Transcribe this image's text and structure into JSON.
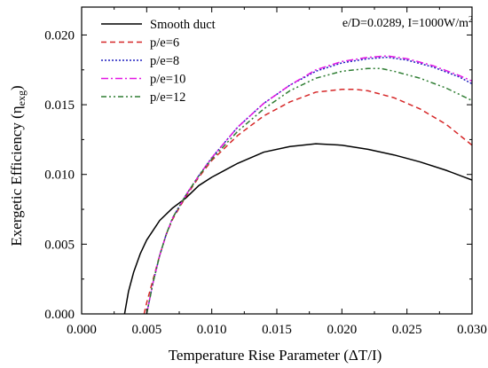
{
  "chart_data": {
    "type": "line",
    "xlabel": "Temperature Rise Parameter (ΔT/I)",
    "ylabel_main": "Exergetic Efficiency (η",
    "ylabel_sub": "exg",
    "ylabel_close": ")",
    "xlim": [
      0.0,
      0.03
    ],
    "ylim": [
      0.0,
      0.022
    ],
    "xticks": [
      "0.000",
      "0.005",
      "0.010",
      "0.015",
      "0.020",
      "0.025",
      "0.030"
    ],
    "yticks": [
      "0.000",
      "0.005",
      "0.010",
      "0.015",
      "0.020"
    ],
    "grid": false,
    "legend_position": "top-left",
    "annotation_prefix": "e/D=0.0289, I=1000W/m",
    "annotation_sup": "2",
    "series": [
      {
        "name": "Smooth duct",
        "color": "#000000",
        "dash": "",
        "x": [
          0.0033,
          0.0036,
          0.004,
          0.0045,
          0.005,
          0.006,
          0.007,
          0.008,
          0.009,
          0.01,
          0.012,
          0.014,
          0.016,
          0.018,
          0.02,
          0.022,
          0.024,
          0.026,
          0.028,
          0.03
        ],
        "y": [
          0.0,
          0.0016,
          0.003,
          0.0043,
          0.0053,
          0.0067,
          0.0076,
          0.0083,
          0.0092,
          0.0098,
          0.0108,
          0.0116,
          0.012,
          0.0122,
          0.0121,
          0.0118,
          0.0114,
          0.0109,
          0.0103,
          0.0096
        ]
      },
      {
        "name": "p/e=6",
        "color": "#d62728",
        "dash": "6,4",
        "x": [
          0.0048,
          0.005,
          0.0055,
          0.006,
          0.0065,
          0.007,
          0.008,
          0.009,
          0.01,
          0.012,
          0.014,
          0.016,
          0.018,
          0.02,
          0.021,
          0.022,
          0.024,
          0.026,
          0.028,
          0.03
        ],
        "y": [
          0.0,
          0.0008,
          0.0025,
          0.0042,
          0.0057,
          0.0068,
          0.0084,
          0.0098,
          0.011,
          0.0128,
          0.0142,
          0.0152,
          0.0159,
          0.0161,
          0.0161,
          0.016,
          0.0155,
          0.0147,
          0.0136,
          0.0121
        ]
      },
      {
        "name": "p/e=8",
        "color": "#1f1fbf",
        "dash": "2,2",
        "x": [
          0.005,
          0.0055,
          0.006,
          0.0065,
          0.007,
          0.008,
          0.009,
          0.01,
          0.012,
          0.014,
          0.016,
          0.018,
          0.02,
          0.022,
          0.0235,
          0.025,
          0.027,
          0.029,
          0.03
        ],
        "y": [
          0.0,
          0.0023,
          0.0042,
          0.0057,
          0.0069,
          0.0085,
          0.0099,
          0.0112,
          0.0134,
          0.0151,
          0.0164,
          0.0174,
          0.018,
          0.0183,
          0.0184,
          0.0182,
          0.0177,
          0.017,
          0.0165
        ]
      },
      {
        "name": "p/e=10",
        "color": "#e316e3",
        "dash": "8,3,2,3",
        "x": [
          0.005,
          0.0055,
          0.006,
          0.0065,
          0.007,
          0.008,
          0.009,
          0.01,
          0.012,
          0.014,
          0.016,
          0.018,
          0.02,
          0.022,
          0.0235,
          0.025,
          0.027,
          0.029,
          0.03
        ],
        "y": [
          0.0,
          0.0023,
          0.0042,
          0.0057,
          0.0069,
          0.0085,
          0.0099,
          0.0112,
          0.0134,
          0.0151,
          0.0164,
          0.0175,
          0.0181,
          0.0184,
          0.0185,
          0.0183,
          0.0178,
          0.0171,
          0.0167
        ]
      },
      {
        "name": "p/e=12",
        "color": "#2e7d32",
        "dash": "6,3,2,3,2,3",
        "x": [
          0.005,
          0.0055,
          0.006,
          0.0065,
          0.007,
          0.008,
          0.009,
          0.01,
          0.012,
          0.014,
          0.016,
          0.018,
          0.02,
          0.022,
          0.023,
          0.024,
          0.026,
          0.028,
          0.03
        ],
        "y": [
          0.0,
          0.0023,
          0.0042,
          0.0057,
          0.0069,
          0.0085,
          0.0099,
          0.0111,
          0.0131,
          0.0147,
          0.016,
          0.0169,
          0.0174,
          0.0176,
          0.0176,
          0.0174,
          0.0169,
          0.0162,
          0.0153
        ]
      }
    ]
  }
}
